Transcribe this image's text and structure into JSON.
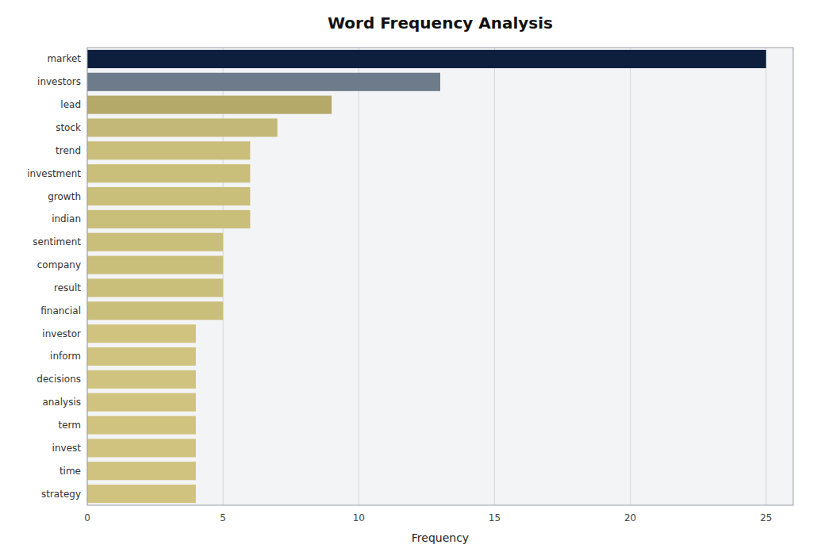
{
  "chart_data": {
    "type": "bar",
    "orientation": "horizontal",
    "title": "Word Frequency Analysis",
    "xlabel": "Frequency",
    "categories": [
      "market",
      "investors",
      "lead",
      "stock",
      "trend",
      "investment",
      "growth",
      "indian",
      "sentiment",
      "company",
      "result",
      "financial",
      "investor",
      "inform",
      "decisions",
      "analysis",
      "term",
      "invest",
      "time",
      "strategy"
    ],
    "values": [
      25,
      13,
      9,
      7,
      6,
      6,
      6,
      6,
      5,
      5,
      5,
      5,
      4,
      4,
      4,
      4,
      4,
      4,
      4,
      4
    ],
    "colors": [
      "#0d1f3c",
      "#6e7b8b",
      "#b5a96a",
      "#c4b878",
      "#c9be7a",
      "#c9be7a",
      "#c9be7a",
      "#c9be7a",
      "#c9be7a",
      "#c9be7a",
      "#c9be7a",
      "#c9be7a",
      "#cfc37f",
      "#cfc37f",
      "#cfc37f",
      "#cfc37f",
      "#cfc37f",
      "#cfc37f",
      "#cfc37f",
      "#cfc37f"
    ],
    "xlim": [
      0,
      26
    ],
    "xticks": [
      0,
      5,
      10,
      15,
      20,
      25
    ],
    "grid": true
  }
}
